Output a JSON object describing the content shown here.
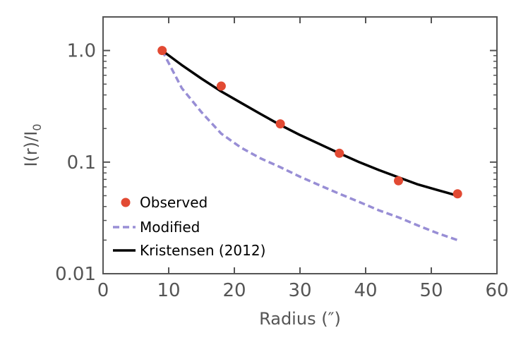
{
  "chart_data": {
    "type": "line",
    "xscale": "linear",
    "yscale": "log",
    "xlabel": "Radius (″)",
    "ylabel_main": "I(r)/I",
    "ylabel_sub": "0",
    "xlim": [
      0,
      60
    ],
    "ylim": [
      0.01,
      2.0
    ],
    "xticks": [
      0,
      10,
      20,
      30,
      40,
      50,
      60
    ],
    "xtick_labels": [
      "0",
      "10",
      "20",
      "30",
      "40",
      "50",
      "60"
    ],
    "yticks": [
      0.01,
      0.1,
      1.0
    ],
    "ytick_labels": [
      "0.01",
      "0.1",
      "1.0"
    ],
    "grid": false,
    "legend_position": "lower-left",
    "series": [
      {
        "name": "Observed",
        "kind": "scatter",
        "color": "#e24a33",
        "x": [
          9,
          18,
          27,
          36,
          45,
          54
        ],
        "y": [
          1.0,
          0.48,
          0.22,
          0.12,
          0.068,
          0.052
        ]
      },
      {
        "name": "Modified",
        "kind": "dashed-line",
        "color": "#988ed5",
        "x": [
          9,
          12,
          15,
          18,
          21,
          24,
          27,
          30,
          33,
          36,
          39,
          42,
          45,
          48,
          51,
          54
        ],
        "y": [
          1.0,
          0.46,
          0.28,
          0.18,
          0.135,
          0.108,
          0.09,
          0.074,
          0.062,
          0.052,
          0.044,
          0.037,
          0.032,
          0.027,
          0.023,
          0.02
        ]
      },
      {
        "name": "Kristensen (2012)",
        "kind": "solid-line",
        "color": "#000000",
        "x": [
          9,
          12,
          15,
          18,
          21,
          24,
          27,
          30,
          33,
          36,
          39,
          42,
          45,
          48,
          51,
          54
        ],
        "y": [
          1.0,
          0.74,
          0.56,
          0.43,
          0.34,
          0.27,
          0.215,
          0.175,
          0.145,
          0.12,
          0.1,
          0.085,
          0.073,
          0.063,
          0.056,
          0.05
        ]
      }
    ]
  }
}
